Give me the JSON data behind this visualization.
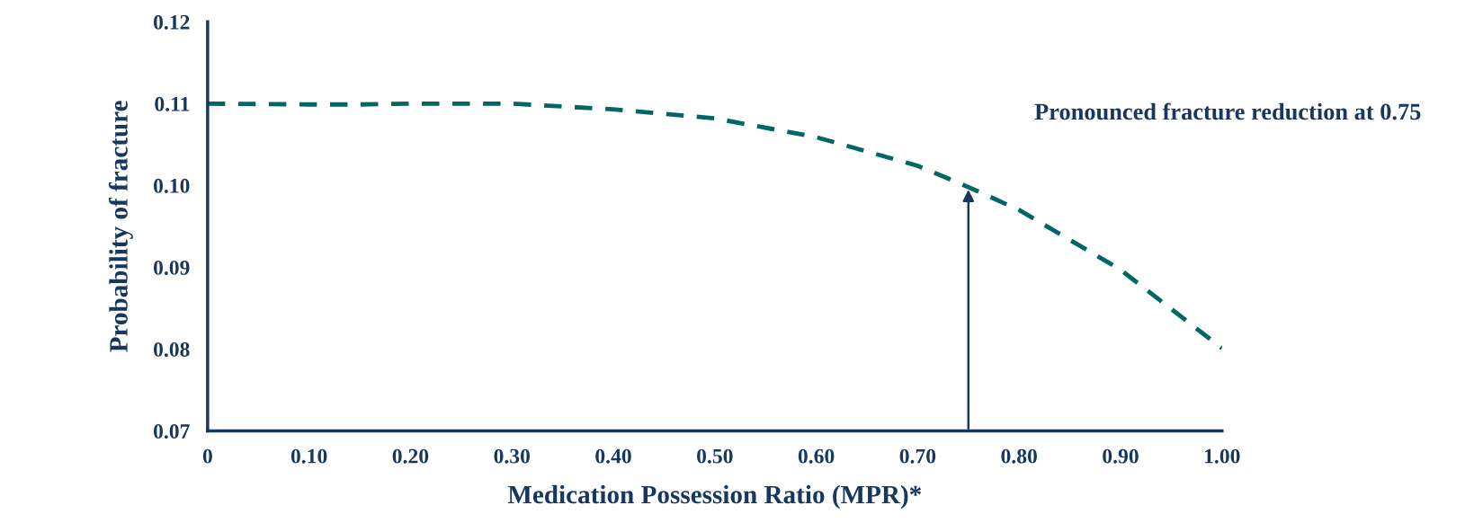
{
  "chart_data": {
    "type": "line",
    "xlabel": "Medication Possession Ratio (MPR)*",
    "ylabel": "Probability of fracture",
    "x": [
      0,
      0.1,
      0.15,
      0.2,
      0.3,
      0.4,
      0.5,
      0.6,
      0.7,
      0.75,
      0.8,
      0.9,
      1.0
    ],
    "series": [
      {
        "color": "#006666",
        "values": [
          0.11,
          0.1099,
          0.1099,
          0.11,
          0.11,
          0.1093,
          0.1082,
          0.1059,
          0.1024,
          0.0998,
          0.097,
          0.0897,
          0.0801
        ]
      }
    ],
    "line_style": "dashed",
    "grid": false,
    "xlim": [
      0,
      1.0
    ],
    "xticks": [
      0,
      {
        "value": 0.1,
        "label": "0.10"
      },
      {
        "value": 0.2,
        "label": "0.20"
      },
      {
        "value": 0.3,
        "label": "0.30"
      },
      {
        "value": 0.4,
        "label": "0.40"
      },
      {
        "value": 0.5,
        "label": "0.50"
      },
      {
        "value": 0.6,
        "label": "0.60"
      },
      {
        "value": 0.7,
        "label": "0.70"
      },
      {
        "value": 0.8,
        "label": "0.80"
      },
      {
        "value": 0.9,
        "label": "0.90"
      },
      {
        "value": 1.0,
        "label": "1.00"
      }
    ],
    "ylim": [
      0.07,
      0.12
    ],
    "yticks": [
      0.07,
      0.08,
      0.09,
      {
        "value": 0.1,
        "label": "0.10"
      },
      0.11,
      0.12
    ],
    "annotations": [
      "Pronounced fracture reduction at 0.75"
    ]
  }
}
